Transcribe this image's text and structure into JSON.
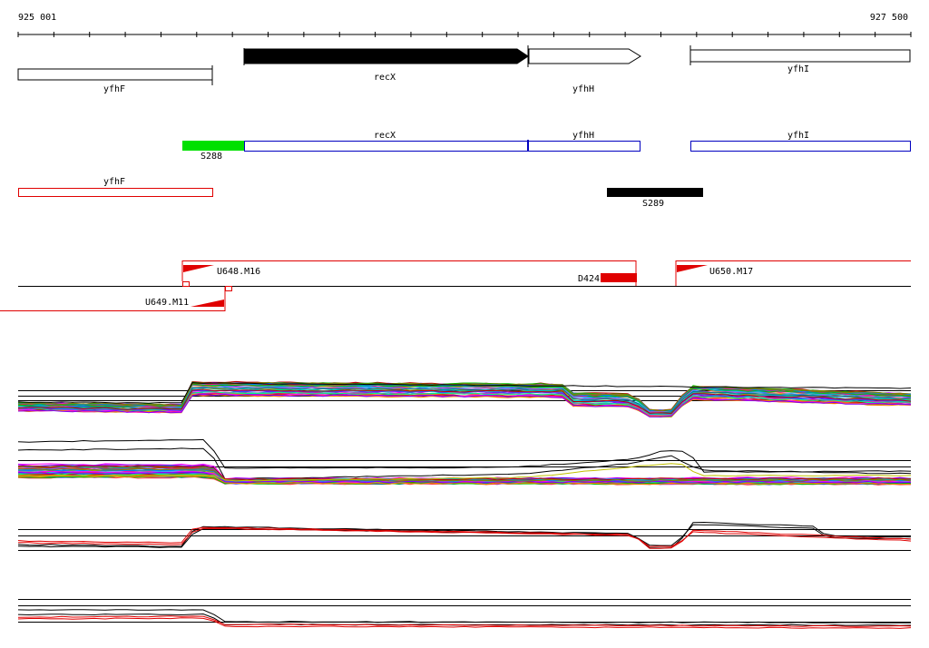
{
  "axis": {
    "start_label": "925 001",
    "end_label": "927 500",
    "start": 925001,
    "end": 927500
  },
  "annotated_genes": [
    {
      "name": "yfhF",
      "strand": "-"
    },
    {
      "name": "recX",
      "strand": "+",
      "highlighted": true
    },
    {
      "name": "yfhH",
      "strand": "+"
    },
    {
      "name": "yfhI",
      "strand": "-"
    }
  ],
  "transcript_segments": {
    "forward": [
      {
        "label": "S288",
        "color": "#00e000"
      },
      {
        "label": "recX",
        "color": "#0000c0"
      },
      {
        "label": "yfhH",
        "color": "#0000c0"
      },
      {
        "label": "yfhI",
        "color": "#0000c0"
      }
    ],
    "reverse": [
      {
        "label": "yfhF",
        "color": "#e00000"
      },
      {
        "label": "S289",
        "color": "#000000"
      }
    ]
  },
  "regulatory_features": [
    {
      "label": "U648.M16",
      "strand": "+"
    },
    {
      "label": "D424",
      "strand": "+"
    },
    {
      "label": "U650.M17",
      "strand": "+"
    },
    {
      "label": "U649.M11",
      "strand": "-"
    }
  ],
  "expression_panels": [
    {
      "name": "forward-strand tiling array",
      "style": "multicolor"
    },
    {
      "name": "reverse-strand tiling array",
      "style": "multicolor"
    },
    {
      "name": "forward-strand RNA-seq",
      "style": "black-red"
    },
    {
      "name": "reverse-strand RNA-seq",
      "style": "black-red"
    }
  ],
  "colors": {
    "forward_feature": "#0000c0",
    "reverse_feature": "#e00000",
    "segment_green": "#00e000",
    "highlight": "#000000"
  }
}
